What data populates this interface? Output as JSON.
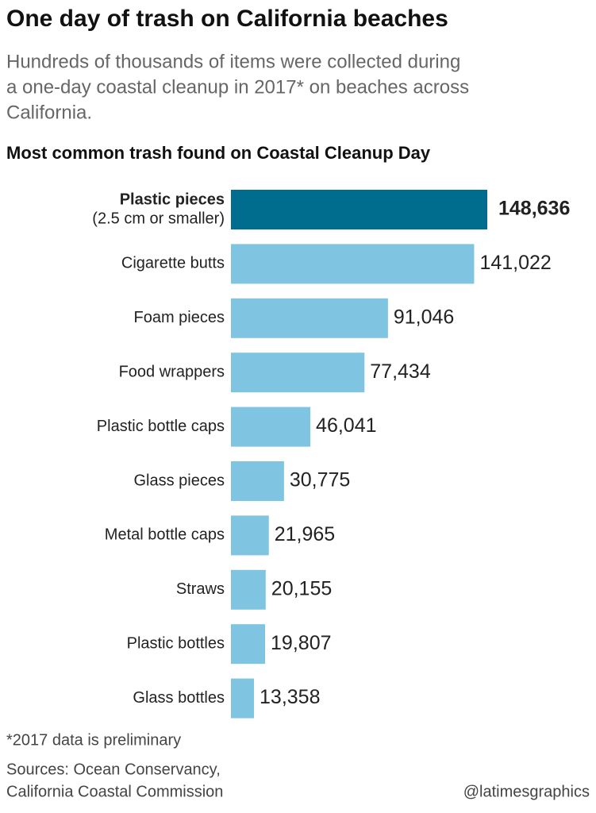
{
  "chart_data": {
    "type": "bar",
    "orientation": "horizontal",
    "title": "One day of trash on California beaches",
    "subtitle": [
      "Hundreds of thousands of items were collected during",
      "a one-day coastal cleanup in 2017* on beaches across",
      "California."
    ],
    "chart_title": "Most common trash found on Coastal Cleanup Day",
    "categories": [
      "Plastic pieces",
      "Cigarette butts",
      "Foam pieces",
      "Food wrappers",
      "Plastic bottle caps",
      "Glass pieces",
      "Metal bottle caps",
      "Straws",
      "Plastic bottles",
      "Glass bottles"
    ],
    "category_note": "(2.5 cm or smaller)",
    "values": [
      148636,
      141022,
      91046,
      77434,
      46041,
      30775,
      21965,
      20155,
      19807,
      13358
    ],
    "value_labels": [
      "148,636",
      "141,022",
      "91,046",
      "77,434",
      "46,041",
      "30,775",
      "21,965",
      "20,155",
      "19,807",
      "13,358"
    ],
    "colors": [
      "#006d8f",
      "#7fc4e0",
      "#7fc4e0",
      "#7fc4e0",
      "#7fc4e0",
      "#7fc4e0",
      "#7fc4e0",
      "#7fc4e0",
      "#7fc4e0",
      "#7fc4e0"
    ],
    "footnote": "*2017 data is preliminary",
    "sources": [
      "Sources: Ocean Conservancy,",
      "California Coastal Commission"
    ],
    "credit": "@latimesgraphics"
  }
}
